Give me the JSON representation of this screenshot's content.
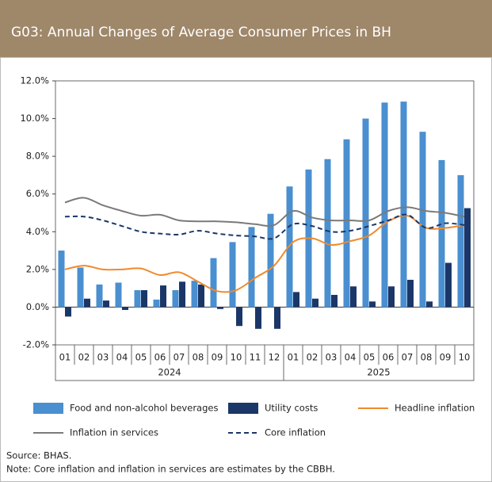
{
  "chart_data": {
    "type": "bar",
    "title": "G03: Annual Changes of Average Consumer Prices in BH",
    "groups": [
      {
        "name": "2024",
        "categories": [
          "01",
          "02",
          "03",
          "04",
          "05",
          "06",
          "07",
          "08",
          "09",
          "10",
          "11",
          "12"
        ]
      },
      {
        "name": "2025",
        "categories": [
          "01",
          "02",
          "03",
          "04",
          "05",
          "06",
          "07",
          "08",
          "09",
          "10"
        ]
      }
    ],
    "series": [
      {
        "name": "Food and non-alcohol beverages",
        "type": "bar",
        "color": "#4a8fd0",
        "values": [
          3.0,
          2.1,
          1.2,
          1.3,
          0.9,
          0.4,
          0.9,
          1.4,
          2.6,
          3.45,
          4.25,
          4.95,
          6.4,
          7.3,
          7.85,
          8.9,
          10.0,
          10.85,
          10.9,
          9.3,
          7.8,
          7.0
        ]
      },
      {
        "name": "Utility costs",
        "type": "bar",
        "color": "#1b3768",
        "values": [
          -0.5,
          0.45,
          0.35,
          -0.15,
          0.9,
          1.15,
          1.35,
          1.2,
          -0.1,
          -1.0,
          -1.15,
          -1.15,
          0.8,
          0.45,
          0.65,
          1.1,
          0.3,
          1.1,
          1.45,
          0.3,
          2.35,
          5.25
        ]
      },
      {
        "name": "Headline inflation",
        "type": "line",
        "color": "#f08a2c",
        "dashed": false,
        "values": [
          2.0,
          2.2,
          2.0,
          2.0,
          2.05,
          1.7,
          1.85,
          1.35,
          0.85,
          0.9,
          1.55,
          2.2,
          3.45,
          3.65,
          3.3,
          3.5,
          3.8,
          4.55,
          4.85,
          4.2,
          4.2,
          4.35
        ]
      },
      {
        "name": "Inflation in services",
        "type": "line",
        "color": "#7a7a7a",
        "dashed": false,
        "values": [
          5.55,
          5.8,
          5.4,
          5.1,
          4.85,
          4.9,
          4.6,
          4.55,
          4.55,
          4.5,
          4.4,
          4.35,
          5.1,
          4.75,
          4.6,
          4.6,
          4.6,
          5.1,
          5.3,
          5.1,
          5.0,
          4.8
        ]
      },
      {
        "name": "Core inflation",
        "type": "line",
        "color": "#1b3768",
        "dashed": true,
        "values": [
          4.8,
          4.8,
          4.6,
          4.3,
          4.0,
          3.9,
          3.85,
          4.05,
          3.9,
          3.8,
          3.75,
          3.65,
          4.4,
          4.3,
          4.0,
          4.05,
          4.3,
          4.6,
          4.9,
          4.2,
          4.45,
          4.35
        ]
      }
    ],
    "ylim": [
      -2,
      12
    ],
    "yticks": [
      {
        "value": -2,
        "label": "-2.0%"
      },
      {
        "value": 0,
        "label": "0.0%"
      },
      {
        "value": 2,
        "label": "2.0%"
      },
      {
        "value": 4,
        "label": "4.0%"
      },
      {
        "value": 6,
        "label": "6.0%"
      },
      {
        "value": 8,
        "label": "8.0%"
      },
      {
        "value": 10,
        "label": "10.0%"
      },
      {
        "value": 12,
        "label": "12.0%"
      }
    ],
    "grid": false,
    "source": "Source: BHAS.",
    "note": "Note: Core inflation and inflation in services are estimates by the CBBH."
  }
}
